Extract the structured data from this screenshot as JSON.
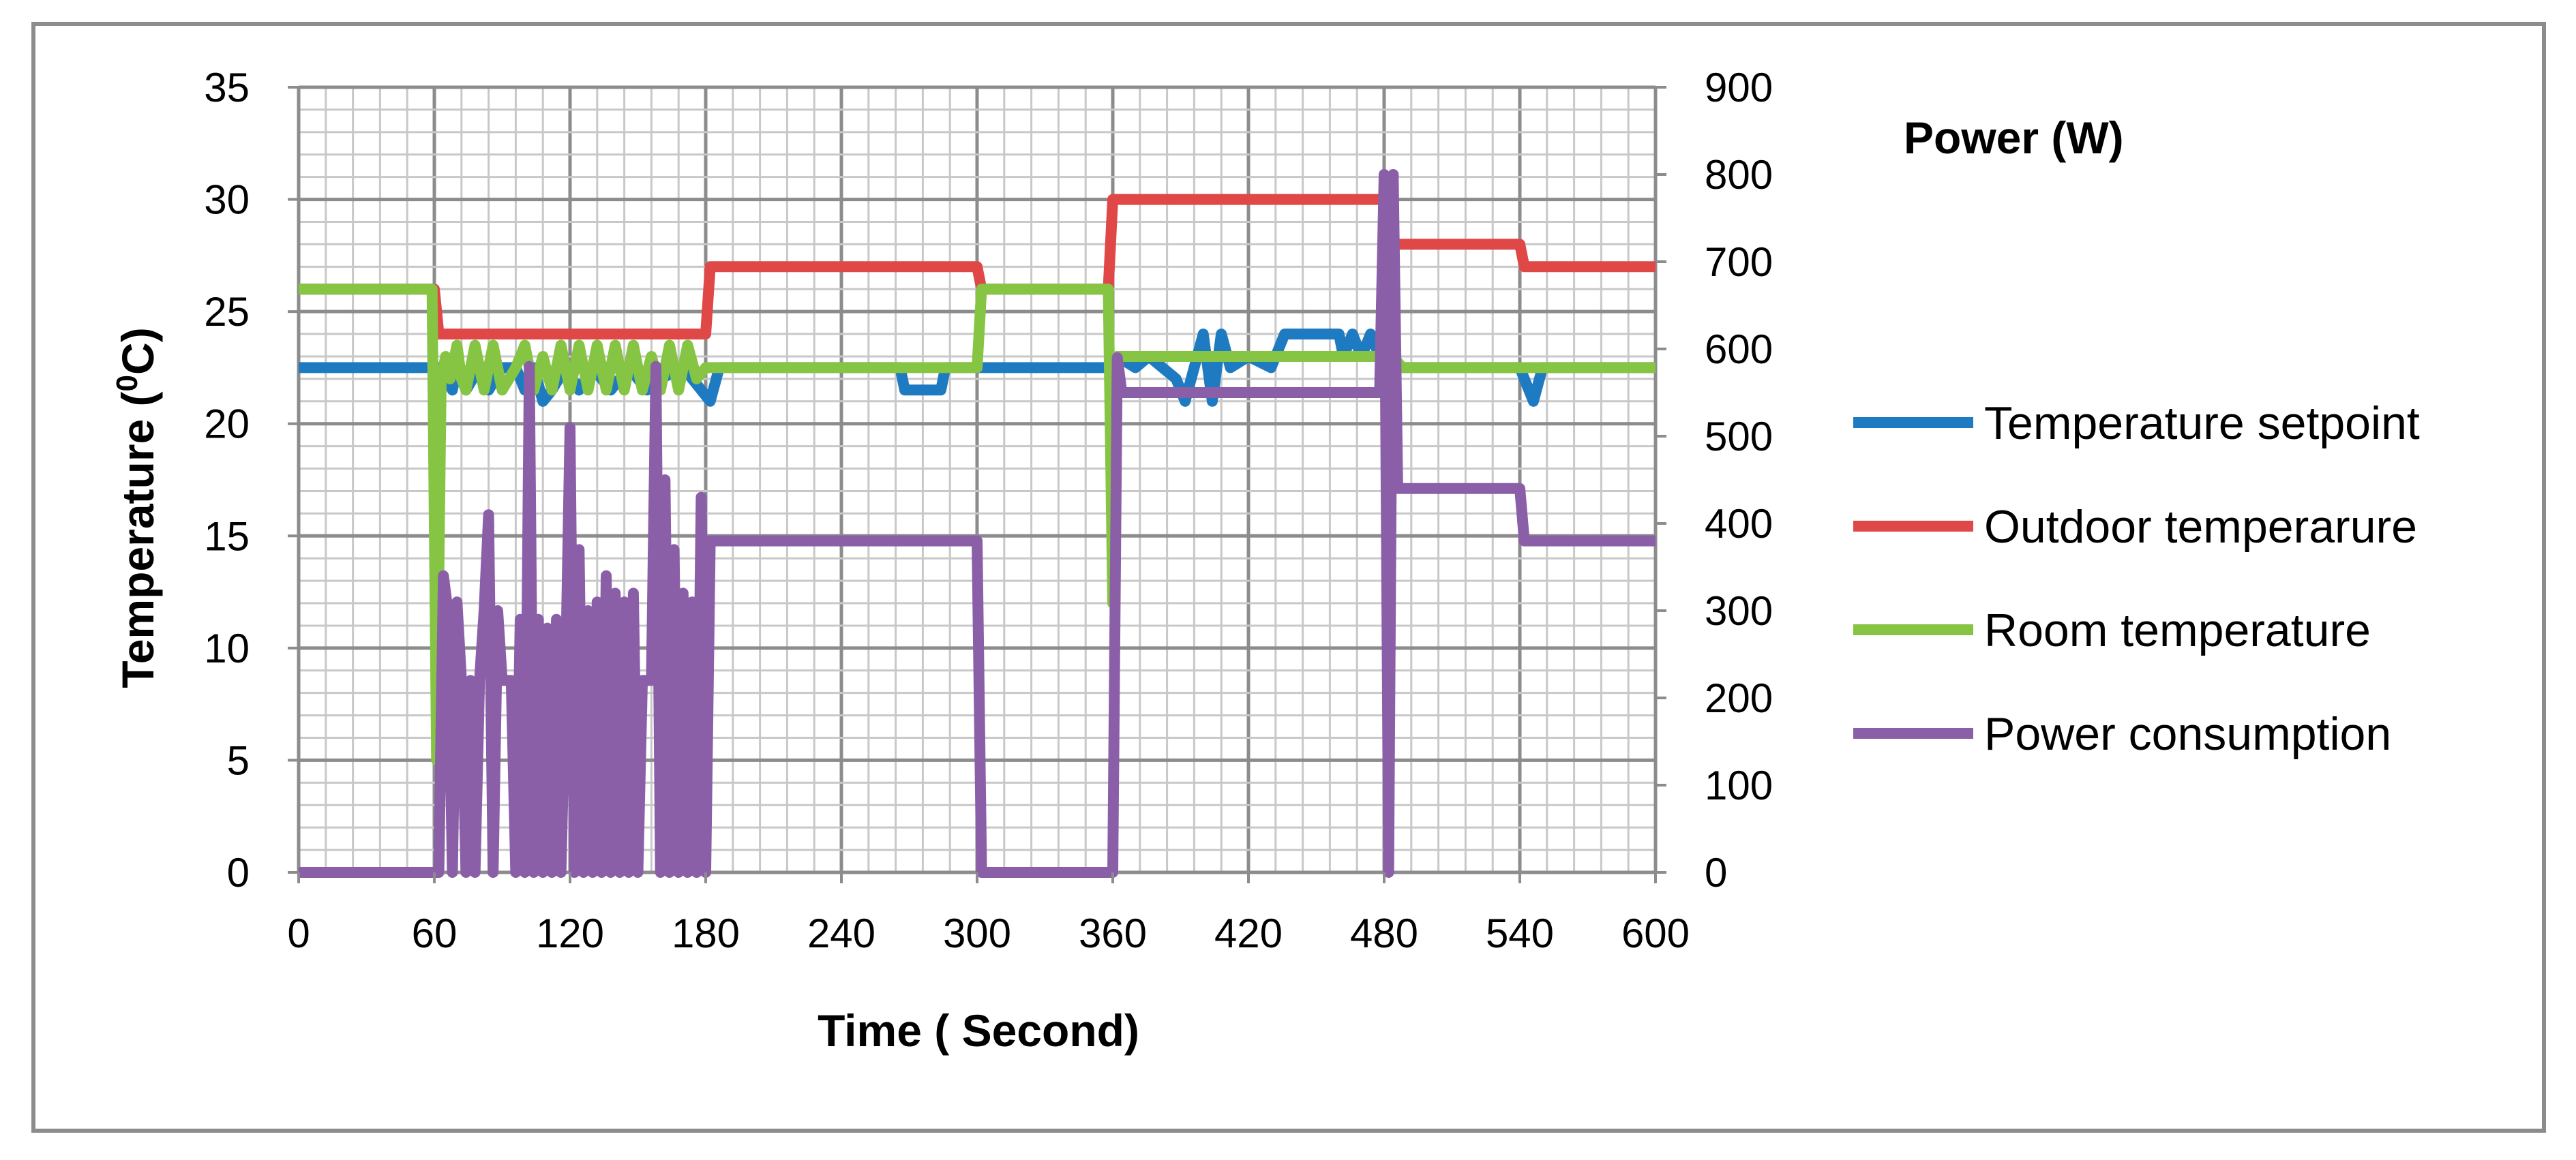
{
  "chart_data": {
    "type": "line",
    "title": "",
    "xlabel": "Time ( Second)",
    "ylabel_left_main": "Temperature (",
    "ylabel_left_sup": "0",
    "ylabel_left_unit": "C)",
    "ylabel_right": "Power (W)",
    "xlim": [
      0,
      600
    ],
    "ylim_left": [
      0,
      35
    ],
    "ylim_right": [
      0,
      900
    ],
    "x_ticks": [
      "0",
      "60",
      "120",
      "180",
      "240",
      "300",
      "360",
      "420",
      "480",
      "540",
      "600"
    ],
    "x_tick_values": [
      0,
      60,
      120,
      180,
      240,
      300,
      360,
      420,
      480,
      540,
      600
    ],
    "y_left_ticks": [
      "0",
      "5",
      "10",
      "15",
      "20",
      "25",
      "30",
      "35"
    ],
    "y_left_tick_values": [
      0,
      5,
      10,
      15,
      20,
      25,
      30,
      35
    ],
    "y_right_ticks": [
      "0",
      "100",
      "200",
      "300",
      "400",
      "500",
      "600",
      "700",
      "800",
      "900"
    ],
    "y_right_tick_values": [
      0,
      100,
      200,
      300,
      400,
      500,
      600,
      700,
      800,
      900
    ],
    "grid": true,
    "legend_position": "right",
    "series": [
      {
        "name": "Temperature setpoint",
        "axis": "left",
        "color": "#1f7bc1",
        "points": [
          [
            0,
            22.5
          ],
          [
            60,
            22.5
          ],
          [
            63,
            22.5
          ],
          [
            65,
            22
          ],
          [
            68,
            21.5
          ],
          [
            70,
            22.5
          ],
          [
            74,
            21.5
          ],
          [
            80,
            22.5
          ],
          [
            84,
            21.5
          ],
          [
            90,
            22.5
          ],
          [
            96,
            22.5
          ],
          [
            100,
            21.5
          ],
          [
            104,
            22.5
          ],
          [
            108,
            21
          ],
          [
            112,
            21.5
          ],
          [
            118,
            22.5
          ],
          [
            124,
            21.5
          ],
          [
            130,
            22.5
          ],
          [
            138,
            21.5
          ],
          [
            146,
            22.5
          ],
          [
            154,
            21.5
          ],
          [
            160,
            22
          ],
          [
            170,
            22.5
          ],
          [
            178,
            21.5
          ],
          [
            182,
            21
          ],
          [
            186,
            22.5
          ],
          [
            266,
            22.5
          ],
          [
            268,
            21.5
          ],
          [
            284,
            21.5
          ],
          [
            286,
            22.5
          ],
          [
            360,
            22.5
          ],
          [
            362,
            23
          ],
          [
            370,
            22.5
          ],
          [
            376,
            23
          ],
          [
            382,
            22.5
          ],
          [
            388,
            22
          ],
          [
            392,
            21
          ],
          [
            396,
            22.5
          ],
          [
            400,
            24
          ],
          [
            404,
            21
          ],
          [
            408,
            24
          ],
          [
            412,
            22.5
          ],
          [
            420,
            23
          ],
          [
            430,
            22.5
          ],
          [
            436,
            24
          ],
          [
            460,
            24
          ],
          [
            462,
            23
          ],
          [
            466,
            24
          ],
          [
            470,
            23
          ],
          [
            474,
            24
          ],
          [
            478,
            23
          ],
          [
            482,
            23
          ],
          [
            486,
            22.5
          ],
          [
            540,
            22.5
          ],
          [
            542,
            22
          ],
          [
            546,
            21
          ],
          [
            550,
            22.5
          ],
          [
            600,
            22.5
          ]
        ]
      },
      {
        "name": "Outdoor temperarure",
        "axis": "left",
        "color": "#e04848",
        "points": [
          [
            0,
            26
          ],
          [
            60,
            26
          ],
          [
            62,
            24
          ],
          [
            180,
            24
          ],
          [
            182,
            27
          ],
          [
            300,
            27
          ],
          [
            302,
            26
          ],
          [
            358,
            26
          ],
          [
            360,
            30
          ],
          [
            480,
            30
          ],
          [
            482,
            28
          ],
          [
            540,
            28
          ],
          [
            542,
            27
          ],
          [
            600,
            27
          ]
        ]
      },
      {
        "name": "Room temperature",
        "axis": "left",
        "color": "#86c443",
        "points": [
          [
            0,
            26
          ],
          [
            59,
            26
          ],
          [
            61,
            5
          ],
          [
            63,
            22
          ],
          [
            65,
            23
          ],
          [
            67,
            22
          ],
          [
            70,
            23.5
          ],
          [
            72,
            22
          ],
          [
            74,
            21.5
          ],
          [
            78,
            23.5
          ],
          [
            82,
            21.5
          ],
          [
            86,
            23.5
          ],
          [
            90,
            21.5
          ],
          [
            96,
            22.5
          ],
          [
            100,
            23.5
          ],
          [
            104,
            21.5
          ],
          [
            108,
            23
          ],
          [
            112,
            21.5
          ],
          [
            116,
            23.5
          ],
          [
            120,
            21.5
          ],
          [
            124,
            23.5
          ],
          [
            128,
            21.5
          ],
          [
            132,
            23.5
          ],
          [
            136,
            21.5
          ],
          [
            140,
            23.5
          ],
          [
            144,
            21.5
          ],
          [
            148,
            23.5
          ],
          [
            152,
            21.5
          ],
          [
            156,
            23
          ],
          [
            160,
            21.5
          ],
          [
            164,
            23.5
          ],
          [
            168,
            21.5
          ],
          [
            172,
            23.5
          ],
          [
            176,
            22
          ],
          [
            180,
            22.5
          ],
          [
            300,
            22.5
          ],
          [
            302,
            26
          ],
          [
            358,
            26
          ],
          [
            360,
            12
          ],
          [
            362,
            23
          ],
          [
            480,
            23
          ],
          [
            482,
            24
          ],
          [
            484,
            23
          ],
          [
            488,
            22.5
          ],
          [
            600,
            22.5
          ]
        ]
      },
      {
        "name": "Power consumption",
        "axis": "right",
        "color": "#8a5fa8",
        "points": [
          [
            0,
            0
          ],
          [
            62,
            0
          ],
          [
            64,
            340
          ],
          [
            66,
            300
          ],
          [
            68,
            0
          ],
          [
            70,
            310
          ],
          [
            72,
            220
          ],
          [
            74,
            0
          ],
          [
            76,
            220
          ],
          [
            78,
            0
          ],
          [
            80,
            220
          ],
          [
            82,
            300
          ],
          [
            84,
            410
          ],
          [
            86,
            0
          ],
          [
            88,
            300
          ],
          [
            90,
            220
          ],
          [
            94,
            220
          ],
          [
            96,
            0
          ],
          [
            98,
            290
          ],
          [
            100,
            0
          ],
          [
            102,
            580
          ],
          [
            104,
            0
          ],
          [
            106,
            290
          ],
          [
            108,
            0
          ],
          [
            110,
            280
          ],
          [
            112,
            0
          ],
          [
            114,
            290
          ],
          [
            116,
            0
          ],
          [
            118,
            220
          ],
          [
            120,
            510
          ],
          [
            122,
            0
          ],
          [
            124,
            370
          ],
          [
            126,
            0
          ],
          [
            128,
            300
          ],
          [
            130,
            0
          ],
          [
            132,
            310
          ],
          [
            134,
            0
          ],
          [
            136,
            340
          ],
          [
            138,
            0
          ],
          [
            140,
            320
          ],
          [
            142,
            0
          ],
          [
            144,
            310
          ],
          [
            146,
            0
          ],
          [
            148,
            320
          ],
          [
            150,
            0
          ],
          [
            152,
            220
          ],
          [
            156,
            220
          ],
          [
            158,
            580
          ],
          [
            160,
            0
          ],
          [
            162,
            450
          ],
          [
            164,
            0
          ],
          [
            166,
            370
          ],
          [
            168,
            0
          ],
          [
            170,
            320
          ],
          [
            172,
            0
          ],
          [
            174,
            310
          ],
          [
            176,
            0
          ],
          [
            178,
            430
          ],
          [
            180,
            0
          ],
          [
            182,
            380
          ],
          [
            300,
            380
          ],
          [
            302,
            0
          ],
          [
            360,
            0
          ],
          [
            362,
            590
          ],
          [
            364,
            550
          ],
          [
            478,
            550
          ],
          [
            480,
            800
          ],
          [
            482,
            0
          ],
          [
            484,
            800
          ],
          [
            486,
            440
          ],
          [
            540,
            440
          ],
          [
            542,
            380
          ],
          [
            600,
            380
          ]
        ]
      }
    ]
  }
}
